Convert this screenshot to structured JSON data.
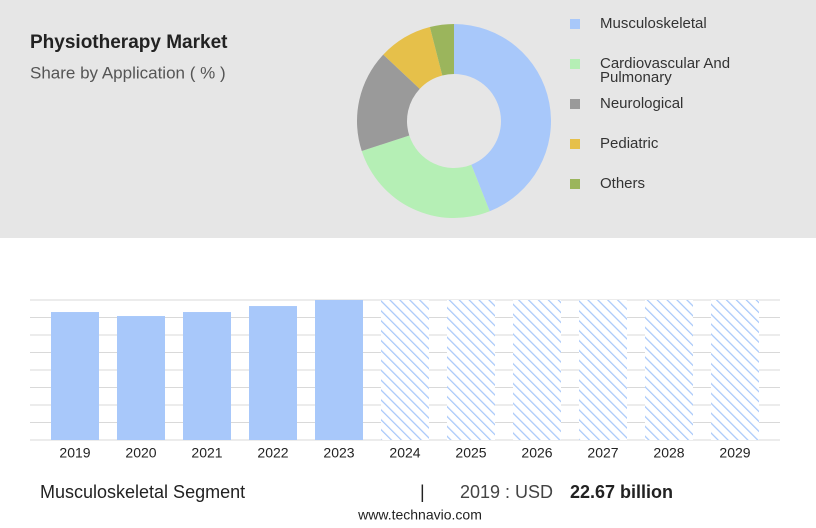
{
  "header": {
    "title": "Physiotherapy Market",
    "subtitle": "Share by Application ( % )"
  },
  "chart_data": [
    {
      "type": "pie",
      "series": [
        {
          "name": "Musculoskeletal",
          "color": "#a8c8fa",
          "values": [
            44
          ]
        },
        {
          "name": "Cardiovascular And Pulmonary",
          "color": "#b5efb5",
          "values": [
            26
          ]
        },
        {
          "name": "Neurological",
          "color": "#9a9a9a",
          "values": [
            17
          ]
        },
        {
          "name": "Pediatric",
          "color": "#e6c04a",
          "values": [
            9
          ]
        },
        {
          "name": "Others",
          "color": "#9bb55c",
          "values": [
            4
          ]
        }
      ]
    },
    {
      "type": "bar",
      "categories": [
        "2019",
        "2020",
        "2021",
        "2022",
        "2023",
        "2024",
        "2025",
        "2026",
        "2027",
        "2028",
        "2029"
      ],
      "values": [
        22.67,
        21.96,
        22.67,
        23.73,
        24.8,
        null,
        null,
        null,
        null,
        null,
        null
      ],
      "color": "#a8c8fa",
      "ylim": [
        0,
        24.8
      ],
      "yticks": [
        0,
        3.1,
        6.2,
        9.3,
        12.4,
        15.5,
        18.6,
        21.7,
        24.8
      ],
      "grid": true
    }
  ],
  "footer": {
    "segment": "Musculoskeletal Segment",
    "separator": "|",
    "year_label": "2019 : USD",
    "value_label": "22.67 billion",
    "source": "www.technavio.com"
  }
}
